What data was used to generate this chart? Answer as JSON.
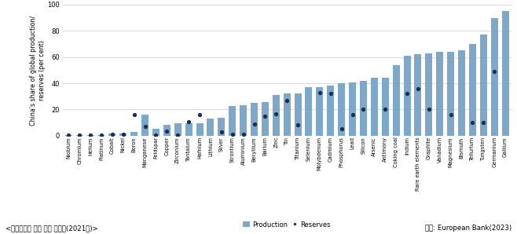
{
  "categories": [
    "Niobium",
    "Chromium",
    "Helium",
    "Platinum",
    "Cobalt",
    "Nickel",
    "Boron",
    "Manganese",
    "Feldspar",
    "Copper",
    "Zirconium",
    "Tantalum",
    "Hafnium",
    "Lithium",
    "Silver",
    "Strontium",
    "Aluminium",
    "Beryllium",
    "Barium",
    "Zinc",
    "Tin",
    "Titanium",
    "Selenium",
    "Molybdenum",
    "Cadmium",
    "Phosphorus",
    "Lead",
    "Silicon",
    "Arsenic",
    "Antimony",
    "Coking coal",
    "Indium",
    "Rare earth elements",
    "Graphite",
    "Vanadium",
    "Magnesium",
    "Bismuth",
    "Tellurium",
    "Tungsten",
    "Germanium",
    "Gallium"
  ],
  "production": [
    0.5,
    0.5,
    0.5,
    0.5,
    1.5,
    2.0,
    3.0,
    16.0,
    5.5,
    8.5,
    9.5,
    9.5,
    9.5,
    13.0,
    13.5,
    22.5,
    23.5,
    25.0,
    25.5,
    31.0,
    32.5,
    32.5,
    37.0,
    37.0,
    38.5,
    40.0,
    40.5,
    42.0,
    44.0,
    44.0,
    54.0,
    61.0,
    62.0,
    63.0,
    64.0,
    64.0,
    65.0,
    70.0,
    77.0,
    90.0,
    95.0
  ],
  "reserves": [
    0.5,
    0.5,
    0.5,
    0.5,
    1.0,
    1.0,
    16.0,
    7.0,
    0.5,
    3.5,
    0.5,
    10.5,
    16.0,
    null,
    3.0,
    1.0,
    1.0,
    9.0,
    15.0,
    16.5,
    27.0,
    8.0,
    null,
    33.0,
    32.5,
    5.0,
    16.0,
    20.0,
    null,
    20.0,
    null,
    32.0,
    36.0,
    20.0,
    null,
    16.0,
    null,
    10.0,
    10.0,
    49.0,
    null
  ],
  "bar_color": "#7da8c9",
  "dot_color": "#1a2e5a",
  "ylabel": "China's share of global production/\nreserves (per cent)",
  "ylim": [
    0,
    100
  ],
  "yticks": [
    0,
    20,
    40,
    60,
    80,
    100
  ],
  "title_bottom": "<핵심광물별 중국 생산 점유율(2021년)>",
  "source_text": "자료: European Bank(2023)",
  "legend_production": "Production",
  "legend_reserves": "Reserves",
  "background_color": "#ffffff",
  "grid_color": "#cccccc"
}
